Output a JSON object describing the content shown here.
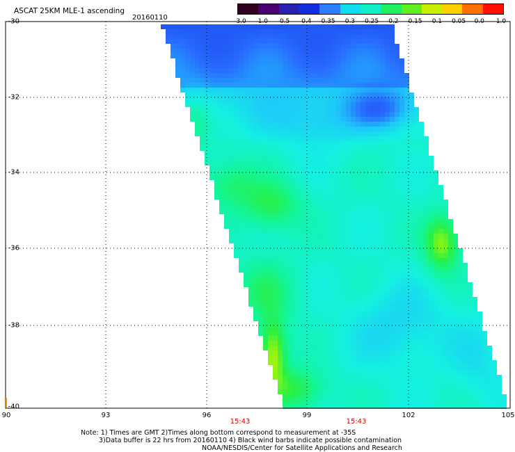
{
  "header": {
    "title": "ASCAT 25KM MLE-1 ascending",
    "date": "20160110"
  },
  "colorbar": {
    "labels": [
      "-3.0",
      "-1.0",
      "-0.5",
      "-0.4",
      "-0.35",
      "-0.3",
      "-0.25",
      "-0.2",
      "-0.15",
      "-0.1",
      "-0.05",
      "0.0",
      "1.0"
    ],
    "colors": [
      "#300020",
      "#4a0070",
      "#2a20b0",
      "#1030e0",
      "#2c80ff",
      "#10ddf0",
      "#10f0c8",
      "#20f060",
      "#60f020",
      "#c8f000",
      "#ffd000",
      "#ff7000",
      "#ff1000"
    ]
  },
  "axes": {
    "lat_labels": [
      "-30",
      "-32",
      "-34",
      "-36",
      "-38",
      "-40"
    ],
    "lon_labels": [
      "90",
      "93",
      "96",
      "99",
      "102",
      "105"
    ]
  },
  "times": [
    "15:43",
    "15:43"
  ],
  "notes": {
    "line1": "Note: 1) Times are GMT 2)Times along bottom correspond to measurement at -35S",
    "line2": "3)Data buffer is 22 hrs from 20160110 4) Black wind barbs indicate possible contamination",
    "line3": "NOAA/NESDIS/Center for Satellite Applications and Research"
  }
}
